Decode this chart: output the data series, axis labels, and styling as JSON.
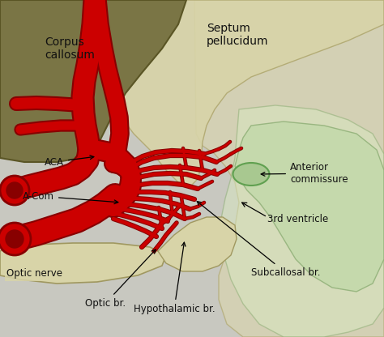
{
  "bg_color": "#c8c8c0",
  "corpus_callosum_color": "#7a7545",
  "septum_color": "#d8d4a8",
  "ventricle_color": "#c0d8a8",
  "ventricle_outer": "#d8e8c0",
  "optic_nerve_color": "#d8d4a8",
  "artery_color": "#cc0000",
  "artery_dark": "#880000",
  "anterior_commissure_color": "#a8c890",
  "labels": {
    "corpus_callosum": "Corpus\ncallosum",
    "septum": "Septum\npellucidum",
    "aca": "ACA",
    "acom": "A-Com",
    "optic_nerve": "Optic nerve",
    "optic_br": "Optic br.",
    "hypothalamic_br": "Hypothalamic br.",
    "subcallosal_br": "Subcallosal br.",
    "third_ventricle": "3rd ventricle",
    "anterior_commissure": "Anterior\ncommissure"
  },
  "fig_width": 4.74,
  "fig_height": 4.16,
  "dpi": 100
}
